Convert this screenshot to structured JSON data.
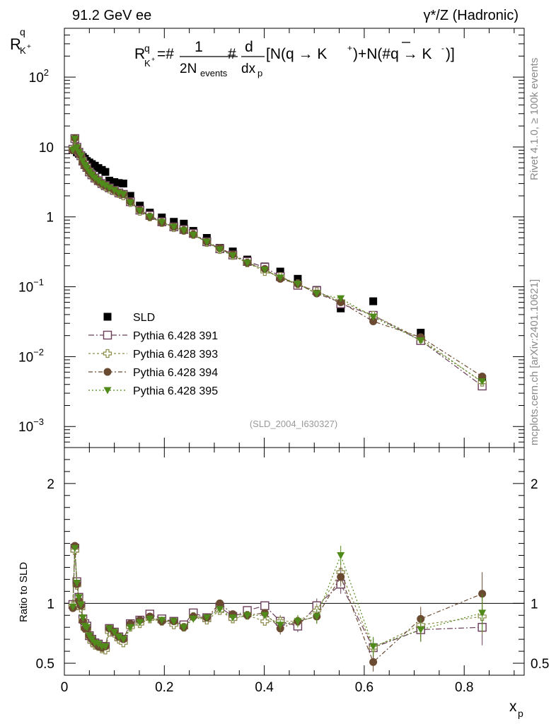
{
  "header": {
    "left": "91.2 GeV ee",
    "right": "γ*/Z (Hadronic)"
  },
  "side": {
    "rivet": "Rivet 4.1.0, ≥ 100k events",
    "mcplots": "mcplots.cern.ch [arXiv:2401.10621]"
  },
  "analysis_id": "(SLD_2004_I630327)",
  "formula_text": "R^q_K+ = # 1/(2N_events) # d/dx_p [N(q → K+)+N(#q̄ → K-)]",
  "colors": {
    "data": "#000000",
    "p391": "#6a3d5a",
    "p393": "#8b8a4a",
    "p394": "#6b4a32",
    "p395": "#4f8a1a"
  },
  "chart_data": [
    {
      "type": "scatter",
      "panel": "main",
      "ylabel": "R^q_{K+}",
      "yscale": "log",
      "ylim": [
        0.0005,
        500
      ],
      "xlim": [
        0,
        0.92
      ],
      "y_tick_labels": [
        "10^-3",
        "10^-2",
        "10^-1",
        "1",
        "10",
        "10^2"
      ],
      "legend_position": "middle-left",
      "x": [
        0.017,
        0.021,
        0.025,
        0.029,
        0.033,
        0.037,
        0.041,
        0.045,
        0.05,
        0.055,
        0.061,
        0.068,
        0.075,
        0.082,
        0.09,
        0.1,
        0.109,
        0.118,
        0.132,
        0.151,
        0.171,
        0.195,
        0.219,
        0.239,
        0.258,
        0.285,
        0.311,
        0.337,
        0.366,
        0.401,
        0.432,
        0.467,
        0.505,
        0.553,
        0.618,
        0.713,
        0.836
      ],
      "series": [
        {
          "name": "SLD",
          "marker": "filled-square",
          "values": [
            9.4,
            9.0,
            8.4,
            8.0,
            7.6,
            7.2,
            6.8,
            6.3,
            6.0,
            5.7,
            5.4,
            5.0,
            4.7,
            4.4,
            3.3,
            3.15,
            3.05,
            3.0,
            2.0,
            1.45,
            1.15,
            0.98,
            0.85,
            0.8,
            0.63,
            0.5,
            0.36,
            0.32,
            0.245,
            0.195,
            0.165,
            0.13,
            0.09,
            0.049,
            0.062,
            0.022,
            0.0048
          ]
        },
        {
          "name": "Pythia 6.428 391",
          "marker": "open-square",
          "values": [
            9.3,
            13.2,
            9.9,
            8.4,
            7.5,
            6.3,
            5.6,
            5.1,
            4.4,
            4.0,
            3.6,
            3.3,
            3.0,
            2.8,
            2.6,
            2.4,
            2.2,
            2.1,
            1.65,
            1.25,
            1.05,
            0.85,
            0.72,
            0.66,
            0.58,
            0.44,
            0.35,
            0.285,
            0.23,
            0.19,
            0.14,
            0.105,
            0.088,
            0.057,
            0.039,
            0.017,
            0.0038
          ]
        },
        {
          "name": "Pythia 6.428 393",
          "marker": "open-cross",
          "values": [
            9.2,
            13.0,
            9.7,
            8.2,
            7.3,
            6.2,
            5.4,
            4.9,
            4.3,
            3.9,
            3.5,
            3.2,
            2.9,
            2.7,
            2.5,
            2.35,
            2.15,
            2.0,
            1.6,
            1.2,
            1.0,
            0.83,
            0.7,
            0.64,
            0.56,
            0.43,
            0.34,
            0.28,
            0.22,
            0.165,
            0.14,
            0.11,
            0.085,
            0.062,
            0.039,
            0.018,
            0.0043
          ]
        },
        {
          "name": "Pythia 6.428 394",
          "marker": "filled-circle",
          "values": [
            9.0,
            13.4,
            9.8,
            8.2,
            7.5,
            6.1,
            5.4,
            5.0,
            4.4,
            4.0,
            3.6,
            3.2,
            3.0,
            2.8,
            2.6,
            2.4,
            2.2,
            2.1,
            1.65,
            1.25,
            1.0,
            0.83,
            0.72,
            0.64,
            0.56,
            0.44,
            0.36,
            0.29,
            0.22,
            0.18,
            0.13,
            0.11,
            0.08,
            0.06,
            0.032,
            0.019,
            0.0052
          ]
        },
        {
          "name": "Pythia 6.428 395",
          "marker": "filled-triangle-down",
          "values": [
            9.1,
            13.1,
            9.8,
            8.4,
            7.5,
            6.3,
            5.5,
            5.0,
            4.4,
            4.0,
            3.6,
            3.3,
            3.0,
            2.8,
            2.6,
            2.4,
            2.2,
            2.1,
            1.6,
            1.22,
            1.0,
            0.84,
            0.72,
            0.64,
            0.55,
            0.44,
            0.34,
            0.28,
            0.22,
            0.175,
            0.135,
            0.11,
            0.08,
            0.068,
            0.037,
            0.017,
            0.0044
          ]
        }
      ]
    },
    {
      "type": "scatter",
      "panel": "ratio",
      "ylabel": "Ratio to SLD",
      "xlabel": "x_p",
      "ylim": [
        0.4,
        2.3
      ],
      "xlim": [
        0,
        0.92
      ],
      "y_ticks": [
        0.5,
        1,
        2
      ],
      "y_tick_labels": [
        "0.5",
        "1",
        "2"
      ],
      "x_ticks": [
        0,
        0.2,
        0.4,
        0.6,
        0.8
      ],
      "x_tick_labels": [
        "0",
        "0.2",
        "0.4",
        "0.6",
        "0.8"
      ],
      "reference_line": 1,
      "x": [
        0.017,
        0.021,
        0.025,
        0.029,
        0.033,
        0.037,
        0.041,
        0.045,
        0.05,
        0.055,
        0.061,
        0.068,
        0.075,
        0.082,
        0.09,
        0.1,
        0.109,
        0.118,
        0.132,
        0.151,
        0.171,
        0.195,
        0.219,
        0.239,
        0.258,
        0.285,
        0.311,
        0.337,
        0.366,
        0.401,
        0.432,
        0.467,
        0.505,
        0.553,
        0.618,
        0.713,
        0.836
      ],
      "series": [
        {
          "name": "Pythia 6.428 391",
          "values": [
            0.99,
            1.46,
            1.18,
            1.05,
            0.98,
            0.87,
            0.83,
            0.81,
            0.73,
            0.7,
            0.67,
            0.66,
            0.64,
            0.64,
            0.79,
            0.76,
            0.72,
            0.7,
            0.83,
            0.86,
            0.91,
            0.87,
            0.85,
            0.82,
            0.92,
            0.88,
            0.97,
            0.89,
            0.94,
            0.98,
            0.85,
            0.81,
            0.98,
            1.16,
            0.63,
            0.78,
            0.8
          ],
          "err": [
            0.03,
            0.03,
            0.03,
            0.03,
            0.03,
            0.03,
            0.03,
            0.03,
            0.03,
            0.03,
            0.03,
            0.03,
            0.03,
            0.03,
            0.03,
            0.03,
            0.03,
            0.03,
            0.03,
            0.03,
            0.03,
            0.03,
            0.03,
            0.03,
            0.03,
            0.03,
            0.03,
            0.03,
            0.03,
            0.03,
            0.05,
            0.05,
            0.06,
            0.08,
            0.08,
            0.1,
            0.15
          ]
        },
        {
          "name": "Pythia 6.428 393",
          "values": [
            0.98,
            1.44,
            1.15,
            1.03,
            0.96,
            0.86,
            0.79,
            0.78,
            0.72,
            0.68,
            0.65,
            0.64,
            0.62,
            0.61,
            0.76,
            0.75,
            0.7,
            0.67,
            0.8,
            0.83,
            0.87,
            0.85,
            0.82,
            0.8,
            0.89,
            0.86,
            0.94,
            0.87,
            0.9,
            0.85,
            0.85,
            0.85,
            0.94,
            1.26,
            0.63,
            0.82,
            0.89
          ],
          "err": [
            0.03,
            0.03,
            0.03,
            0.03,
            0.03,
            0.03,
            0.03,
            0.03,
            0.03,
            0.03,
            0.03,
            0.03,
            0.03,
            0.03,
            0.03,
            0.03,
            0.03,
            0.03,
            0.03,
            0.03,
            0.03,
            0.03,
            0.03,
            0.03,
            0.03,
            0.03,
            0.03,
            0.03,
            0.03,
            0.03,
            0.05,
            0.05,
            0.06,
            0.08,
            0.08,
            0.1,
            0.15
          ]
        },
        {
          "name": "Pythia 6.428 394",
          "values": [
            0.96,
            1.48,
            1.16,
            1.02,
            0.98,
            0.85,
            0.79,
            0.79,
            0.73,
            0.7,
            0.67,
            0.64,
            0.63,
            0.64,
            0.79,
            0.76,
            0.72,
            0.7,
            0.83,
            0.86,
            0.89,
            0.85,
            0.85,
            0.8,
            0.89,
            0.88,
            1.0,
            0.91,
            0.9,
            0.92,
            0.79,
            0.85,
            0.89,
            1.22,
            0.51,
            0.87,
            1.08
          ],
          "err": [
            0.03,
            0.03,
            0.03,
            0.03,
            0.03,
            0.03,
            0.03,
            0.03,
            0.03,
            0.03,
            0.03,
            0.03,
            0.03,
            0.03,
            0.03,
            0.03,
            0.03,
            0.03,
            0.03,
            0.03,
            0.03,
            0.03,
            0.03,
            0.03,
            0.03,
            0.03,
            0.03,
            0.03,
            0.03,
            0.03,
            0.05,
            0.05,
            0.06,
            0.08,
            0.08,
            0.1,
            0.18
          ]
        },
        {
          "name": "Pythia 6.428 395",
          "values": [
            0.97,
            1.46,
            1.17,
            1.05,
            0.99,
            0.88,
            0.81,
            0.8,
            0.73,
            0.7,
            0.67,
            0.66,
            0.64,
            0.64,
            0.79,
            0.76,
            0.72,
            0.7,
            0.8,
            0.84,
            0.87,
            0.86,
            0.85,
            0.8,
            0.87,
            0.88,
            0.95,
            0.88,
            0.9,
            0.9,
            0.82,
            0.85,
            0.89,
            1.4,
            0.64,
            0.78,
            0.92
          ],
          "err": [
            0.03,
            0.03,
            0.03,
            0.03,
            0.03,
            0.03,
            0.03,
            0.03,
            0.03,
            0.03,
            0.03,
            0.03,
            0.03,
            0.03,
            0.03,
            0.03,
            0.03,
            0.03,
            0.03,
            0.03,
            0.03,
            0.03,
            0.03,
            0.03,
            0.03,
            0.03,
            0.03,
            0.03,
            0.03,
            0.03,
            0.05,
            0.05,
            0.06,
            0.08,
            0.08,
            0.1,
            0.16
          ]
        }
      ]
    }
  ]
}
